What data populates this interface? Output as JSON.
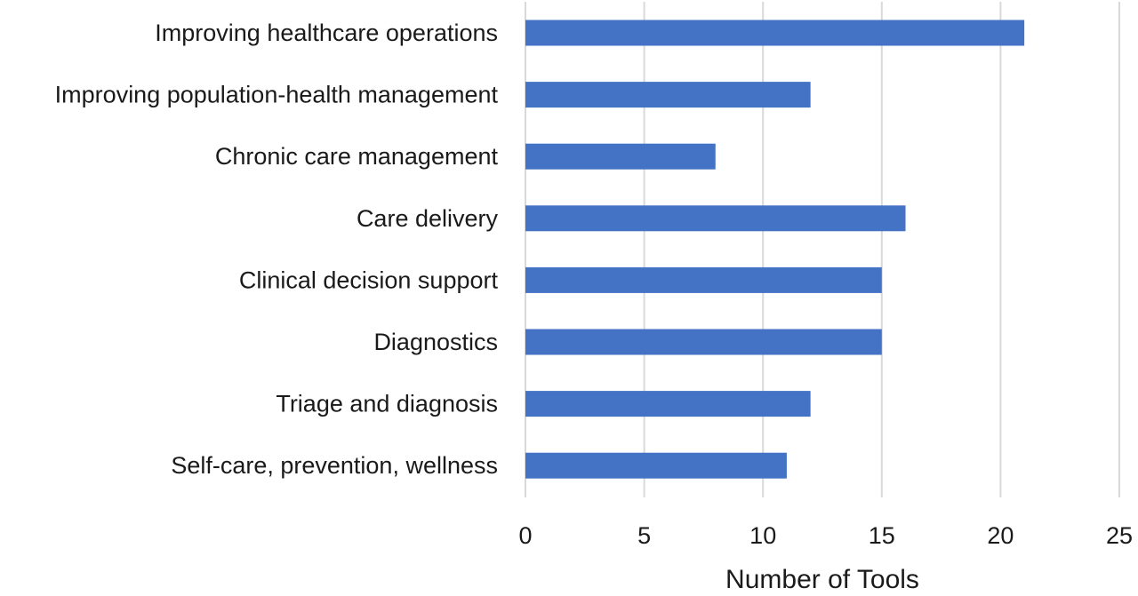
{
  "chart_data": {
    "type": "bar",
    "orientation": "horizontal",
    "categories": [
      "Improving healthcare operations",
      "Improving population-health management",
      "Chronic care management",
      "Care delivery",
      "Clinical decision support",
      "Diagnostics",
      "Triage and diagnosis",
      "Self-care, prevention, wellness"
    ],
    "values": [
      21,
      12,
      8,
      16,
      15,
      15,
      12,
      11
    ],
    "title": "",
    "xlabel": "Number of Tools",
    "ylabel": "",
    "xlim": [
      0,
      25
    ],
    "xticks": [
      "0",
      "5",
      "10",
      "15",
      "20",
      "25"
    ],
    "grid": "vertical",
    "legend": "none",
    "bar_color": "#4472C4",
    "grid_color": "#d9d9d9"
  }
}
